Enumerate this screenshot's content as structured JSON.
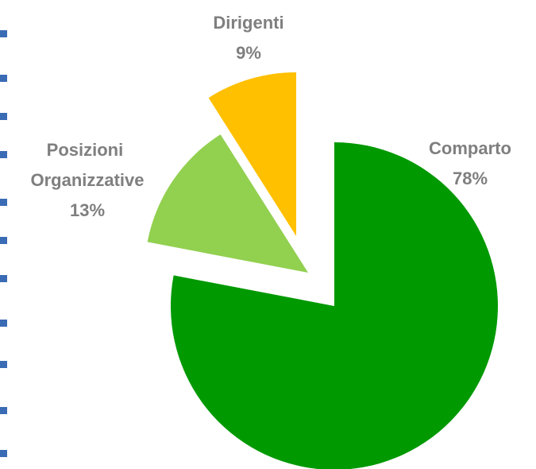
{
  "chart_data": {
    "type": "pie",
    "categories": [
      "Comparto",
      "Posizioni Organizzative",
      "Dirigenti"
    ],
    "values": [
      78,
      13,
      9
    ],
    "value_labels": [
      "78%",
      "13%",
      "9%"
    ],
    "colors": [
      "#009900",
      "#92d050",
      "#ffc000"
    ]
  }
}
